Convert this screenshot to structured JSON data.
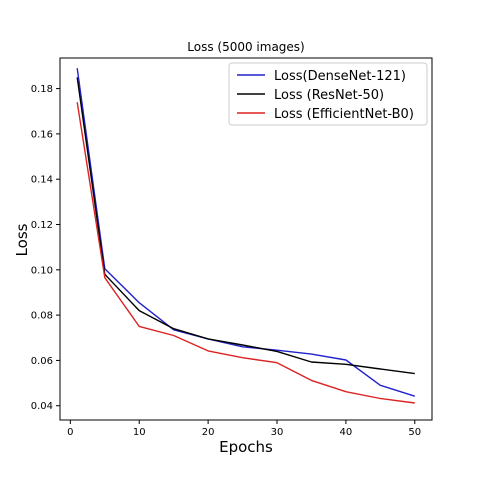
{
  "chart_data": {
    "type": "line",
    "title": "Loss (5000 images)",
    "xlabel": "Epochs",
    "ylabel": "Loss",
    "xlim": [
      -1.5,
      52.5
    ],
    "ylim": [
      0.0337,
      0.1935
    ],
    "xticks": [
      0,
      10,
      20,
      30,
      40,
      50
    ],
    "xtick_labels": [
      "0",
      "10",
      "20",
      "30",
      "40",
      "50"
    ],
    "yticks": [
      0.04,
      0.06,
      0.08,
      0.1,
      0.12,
      0.14,
      0.16,
      0.18
    ],
    "ytick_labels": [
      "0.04",
      "0.06",
      "0.08",
      "0.10",
      "0.12",
      "0.14",
      "0.16",
      "0.18"
    ],
    "grid": false,
    "legend_position": "top-right",
    "series": [
      {
        "name": "Loss(DenseNet-121)",
        "color": "#2222cc",
        "x": [
          1,
          5,
          10,
          15,
          20,
          25,
          30,
          35,
          40,
          45,
          50
        ],
        "y": [
          0.189,
          0.1005,
          0.0855,
          0.0735,
          0.0695,
          0.066,
          0.0645,
          0.0628,
          0.0602,
          0.049,
          0.0442
        ]
      },
      {
        "name": "Loss (ResNet-50)",
        "color": "#000000",
        "x": [
          1,
          5,
          10,
          15,
          20,
          25,
          30,
          35,
          40,
          45,
          50
        ],
        "y": [
          0.185,
          0.098,
          0.082,
          0.074,
          0.0695,
          0.0668,
          0.064,
          0.0593,
          0.0583,
          0.0562,
          0.0542
        ]
      },
      {
        "name": "Loss (EfficientNet-B0)",
        "color": "#dd2222",
        "x": [
          1,
          5,
          10,
          15,
          20,
          25,
          30,
          35,
          40,
          45,
          50
        ],
        "y": [
          0.174,
          0.0965,
          0.075,
          0.071,
          0.0642,
          0.0612,
          0.059,
          0.0512,
          0.0462,
          0.0432,
          0.0412
        ]
      }
    ]
  }
}
